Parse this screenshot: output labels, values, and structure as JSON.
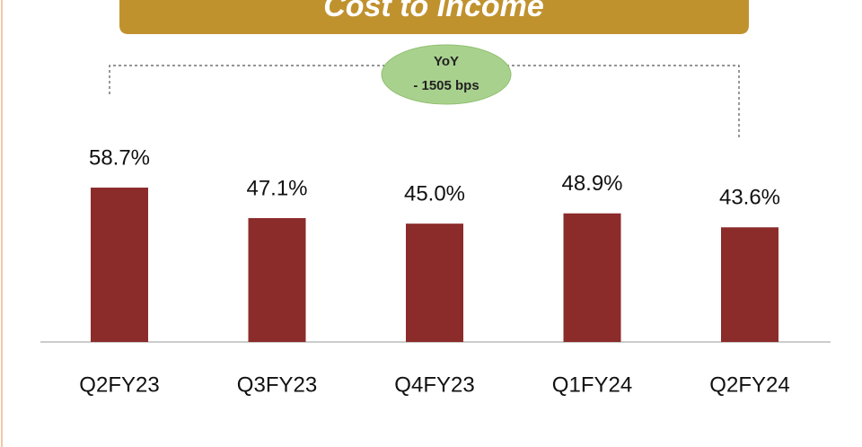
{
  "chart_data": {
    "type": "bar",
    "title": "Cost to Income",
    "categories": [
      "Q2FY23",
      "Q3FY23",
      "Q4FY23",
      "Q1FY24",
      "Q2FY24"
    ],
    "values": [
      58.7,
      47.1,
      45.0,
      48.9,
      43.6
    ],
    "value_labels": [
      "58.7%",
      "47.1%",
      "45.0%",
      "48.9%",
      "43.6%"
    ],
    "color": "#8b2c2a",
    "annotation": {
      "title": "YoY",
      "text": "- 1505 bps"
    }
  }
}
